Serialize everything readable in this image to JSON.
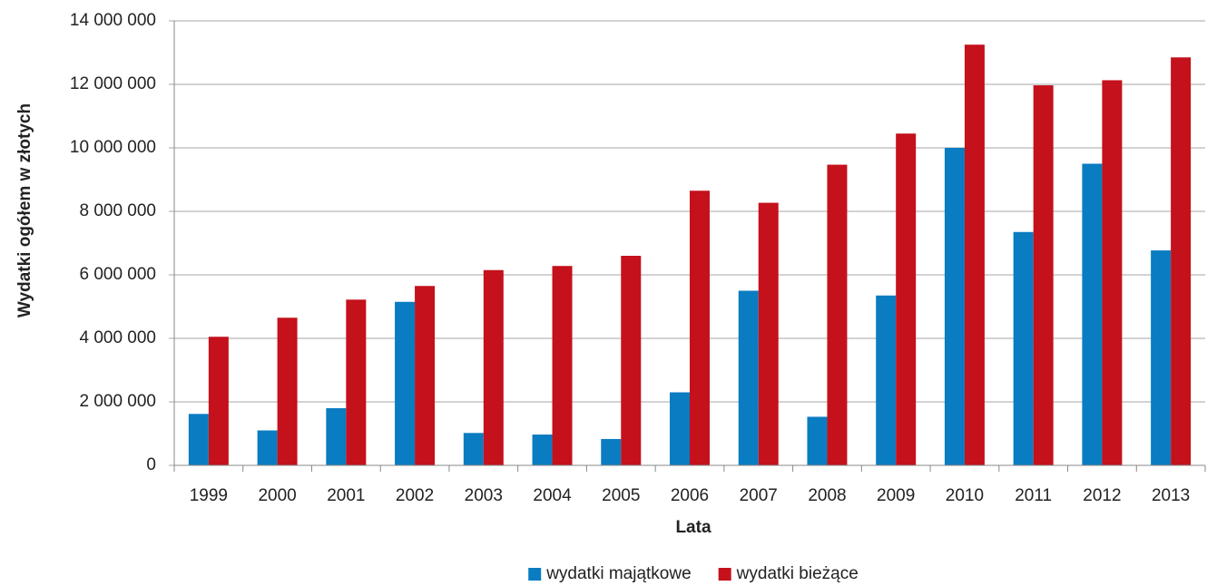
{
  "chart_data": {
    "type": "bar",
    "x_label": "Lata",
    "y_label": "Wydatki ogółem w złotych",
    "categories": [
      "1999",
      "2000",
      "2001",
      "2002",
      "2003",
      "2004",
      "2005",
      "2006",
      "2007",
      "2008",
      "2009",
      "2010",
      "2011",
      "2012",
      "2013"
    ],
    "series": [
      {
        "name": "wydatki majątkowe",
        "color": "#0a7cc1",
        "values": [
          1620000,
          1100000,
          1800000,
          5150000,
          1020000,
          970000,
          830000,
          2300000,
          5500000,
          1530000,
          5350000,
          10000000,
          7350000,
          9500000,
          6770000
        ]
      },
      {
        "name": "wydatki bieżące",
        "color": "#c4111b",
        "values": [
          4050000,
          4650000,
          5220000,
          5650000,
          6150000,
          6280000,
          6600000,
          8650000,
          8270000,
          9470000,
          10450000,
          13250000,
          11970000,
          12130000,
          12850000
        ]
      }
    ],
    "ylim": [
      0,
      14000000
    ],
    "yticks": [
      {
        "value": 0,
        "label": "0"
      },
      {
        "value": 2000000,
        "label": "2 000 000"
      },
      {
        "value": 4000000,
        "label": "4 000 000"
      },
      {
        "value": 6000000,
        "label": "6 000 000"
      },
      {
        "value": 8000000,
        "label": "8 000 000"
      },
      {
        "value": 10000000,
        "label": "10 000 000"
      },
      {
        "value": 12000000,
        "label": "12 000 000"
      },
      {
        "value": 14000000,
        "label": "14 000 000"
      }
    ],
    "grid": true,
    "legend": "bottom"
  }
}
